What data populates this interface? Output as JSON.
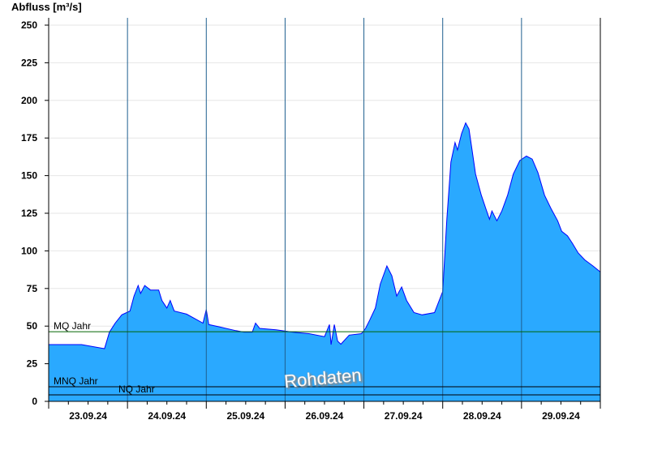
{
  "chart_data": {
    "type": "area",
    "ylabel": "Abfluss [m³/s]",
    "ylim": [
      0,
      255
    ],
    "yticks": [
      0,
      25,
      50,
      75,
      100,
      125,
      150,
      175,
      200,
      225,
      250
    ],
    "xlim": [
      "2024-09-23T00:00",
      "2024-09-30T00:00"
    ],
    "xtick_labels": [
      "23.09.24",
      "24.09.24",
      "25.09.24",
      "26.09.24",
      "27.09.24",
      "28.09.24",
      "29.09.24"
    ],
    "grid": true,
    "fill_color": "#2aa9ff",
    "line_color": "#0000ff",
    "watermark": "Rohdaten",
    "reference_lines": [
      {
        "label": "MQ Jahr",
        "value": 46.3,
        "color": "#006400"
      },
      {
        "label": "MNQ Jahr",
        "value": 9.7,
        "color": "#000000"
      },
      {
        "label": "NQ Jahr",
        "value": 4.3,
        "color": "#000000"
      }
    ],
    "x": [
      "2024-09-23T00:00",
      "2024-09-23T10:00",
      "2024-09-23T17:00",
      "2024-09-23T18:30",
      "2024-09-23T20:15",
      "2024-09-23T22:15",
      "2024-09-24T00:45",
      "2024-09-24T02:00",
      "2024-09-24T03:15",
      "2024-09-24T04:00",
      "2024-09-24T05:15",
      "2024-09-24T07:00",
      "2024-09-24T09:30",
      "2024-09-24T10:30",
      "2024-09-24T12:00",
      "2024-09-24T13:00",
      "2024-09-24T14:15",
      "2024-09-24T18:00",
      "2024-09-24T20:30",
      "2024-09-24T23:00",
      "2024-09-25T00:00",
      "2024-09-25T00:45",
      "2024-09-25T04:00",
      "2024-09-25T09:00",
      "2024-09-25T11:30",
      "2024-09-25T14:00",
      "2024-09-25T15:00",
      "2024-09-25T16:15",
      "2024-09-25T21:15",
      "2024-09-26T02:15",
      "2024-09-26T07:15",
      "2024-09-26T12:00",
      "2024-09-26T13:30",
      "2024-09-26T14:00",
      "2024-09-26T15:00",
      "2024-09-26T16:00",
      "2024-09-26T17:00",
      "2024-09-26T19:30",
      "2024-09-26T23:15",
      "2024-09-27T00:30",
      "2024-09-27T01:45",
      "2024-09-27T03:30",
      "2024-09-27T05:00",
      "2024-09-27T07:00",
      "2024-09-27T08:30",
      "2024-09-27T10:00",
      "2024-09-27T11:30",
      "2024-09-27T13:00",
      "2024-09-27T15:15",
      "2024-09-27T17:45",
      "2024-09-27T21:30",
      "2024-09-28T00:00",
      "2024-09-28T01:15",
      "2024-09-28T02:30",
      "2024-09-28T03:45",
      "2024-09-28T04:30",
      "2024-09-28T05:45",
      "2024-09-28T07:00",
      "2024-09-28T08:00",
      "2024-09-28T08:45",
      "2024-09-28T10:00",
      "2024-09-28T11:45",
      "2024-09-28T13:00",
      "2024-09-28T14:15",
      "2024-09-28T15:00",
      "2024-09-28T16:30",
      "2024-09-28T18:00",
      "2024-09-28T19:45",
      "2024-09-28T21:30",
      "2024-09-28T23:30",
      "2024-09-29T01:30",
      "2024-09-29T03:15",
      "2024-09-29T05:00",
      "2024-09-29T07:00",
      "2024-09-29T09:00",
      "2024-09-29T11:00",
      "2024-09-29T12:15",
      "2024-09-29T14:00",
      "2024-09-29T15:30",
      "2024-09-29T17:15",
      "2024-09-29T19:15",
      "2024-09-29T21:45",
      "2024-09-30T00:00"
    ],
    "y": [
      37.7,
      37.7,
      35,
      46,
      52,
      57.5,
      60,
      70,
      77,
      71.7,
      77,
      74,
      74,
      67,
      62,
      67,
      60,
      58,
      55,
      52,
      61,
      51,
      49.5,
      47,
      46,
      46,
      52,
      48.5,
      47.5,
      46,
      45,
      43,
      51,
      37.7,
      51,
      40,
      38,
      44,
      45,
      48.5,
      54,
      62,
      78,
      90,
      83.5,
      70,
      76,
      67,
      59,
      57.5,
      59,
      73,
      121,
      159,
      172,
      167,
      178,
      185,
      181,
      170,
      151,
      137,
      129,
      121,
      126.5,
      120,
      126.5,
      137,
      151,
      160,
      163,
      161,
      152,
      137,
      128,
      120,
      113,
      110,
      105,
      98.6,
      94,
      90,
      86
    ]
  }
}
